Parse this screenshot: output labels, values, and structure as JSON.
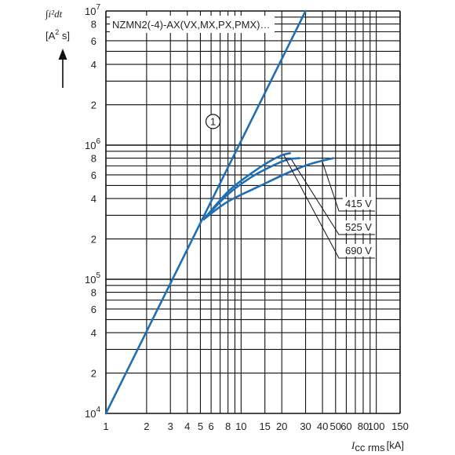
{
  "chart_data": {
    "type": "line",
    "title": "NZMN2(-4)-AX(VX,MX,PX,PMX)…",
    "ylabel_line1": "∫i²dt",
    "ylabel_line2_pre": "[A",
    "ylabel_line2_sup": "2",
    "ylabel_line2_post": " s]",
    "xlabel_symbol": "I",
    "xlabel_sub": "cc rms",
    "xlabel_unit": "[kA]",
    "x_scale": "log",
    "y_scale": "log",
    "xlim": [
      1,
      150
    ],
    "ylim": [
      10000,
      10000000
    ],
    "grid": true,
    "x_ticks": [
      {
        "v": 1,
        "label": "1"
      },
      {
        "v": 2,
        "label": "2"
      },
      {
        "v": 3,
        "label": "3"
      },
      {
        "v": 4,
        "label": "4"
      },
      {
        "v": 5,
        "label": "5"
      },
      {
        "v": 6,
        "label": "6"
      },
      {
        "v": 8,
        "label": "8"
      },
      {
        "v": 10,
        "label": "10"
      },
      {
        "v": 15,
        "label": "15"
      },
      {
        "v": 20,
        "label": "20"
      },
      {
        "v": 30,
        "label": "30"
      },
      {
        "v": 40,
        "label": "40"
      },
      {
        "v": 50,
        "label": "50"
      },
      {
        "v": 60,
        "label": "60"
      },
      {
        "v": 80,
        "label": "80"
      },
      {
        "v": 100,
        "label": "100"
      },
      {
        "v": 150,
        "label": "150"
      }
    ],
    "x_minor_grid": [
      7,
      9,
      70,
      90
    ],
    "y_ticks": [
      {
        "v": 10000,
        "base": "10",
        "exp": "4"
      },
      {
        "v": 20000,
        "label": "2"
      },
      {
        "v": 40000,
        "label": "4"
      },
      {
        "v": 60000,
        "label": "6"
      },
      {
        "v": 80000,
        "label": "8"
      },
      {
        "v": 100000,
        "base": "10",
        "exp": "5"
      },
      {
        "v": 200000,
        "label": "2"
      },
      {
        "v": 400000,
        "label": "4"
      },
      {
        "v": 600000,
        "label": "6"
      },
      {
        "v": 800000,
        "label": "8"
      },
      {
        "v": 1000000,
        "base": "10",
        "exp": "6"
      },
      {
        "v": 2000000,
        "label": "2"
      },
      {
        "v": 4000000,
        "label": "4"
      },
      {
        "v": 6000000,
        "label": "6"
      },
      {
        "v": 8000000,
        "label": "8"
      },
      {
        "v": 10000000,
        "base": "10",
        "exp": "7"
      }
    ],
    "y_minor_grid": [
      30000,
      50000,
      70000,
      90000,
      300000,
      500000,
      700000,
      900000,
      3000000,
      5000000,
      7000000,
      9000000
    ],
    "series": [
      {
        "id": "prospective",
        "marker": "1",
        "x": [
          1,
          30
        ],
        "y": [
          10000,
          10000000
        ]
      },
      {
        "id": "690V",
        "x": [
          5.3,
          8,
          12,
          16,
          20,
          23
        ],
        "y": [
          280000,
          450000,
          620000,
          750000,
          840000,
          870000
        ]
      },
      {
        "id": "525V",
        "x": [
          5.3,
          8,
          12,
          17,
          22,
          27
        ],
        "y": [
          280000,
          430000,
          580000,
          700000,
          780000,
          800000
        ]
      },
      {
        "id": "415V",
        "x": [
          5.3,
          8,
          14,
          22,
          32,
          48
        ],
        "y": [
          280000,
          380000,
          500000,
          620000,
          720000,
          800000
        ]
      }
    ],
    "annotations": [
      {
        "label": "415 V",
        "series": "415V"
      },
      {
        "label": "525 V",
        "series": "525V"
      },
      {
        "label": "690 V",
        "series": "690V"
      }
    ],
    "line_color": "#1f6fb4"
  }
}
